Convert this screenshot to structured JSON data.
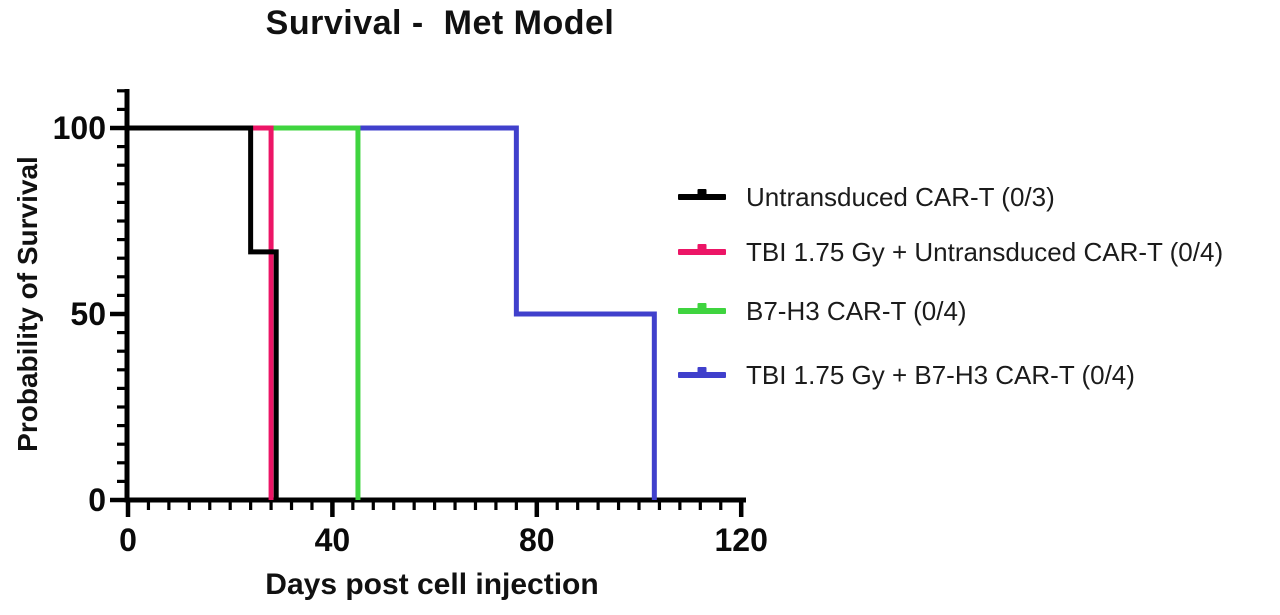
{
  "title": "Survival -  Met Model",
  "chart_data": {
    "type": "line",
    "subtype": "kaplan-meier-step-survival",
    "title": "Survival -  Met Model",
    "xlabel": "Days post cell injection",
    "ylabel": "Probability of Survival",
    "xlim": [
      0,
      120
    ],
    "ylim": [
      0,
      110
    ],
    "x_major_ticks": [
      0,
      40,
      80,
      120
    ],
    "x_minor_tick_step": 4,
    "y_major_ticks": [
      0,
      50,
      100
    ],
    "y_minor_tick_step": 5,
    "grid": false,
    "legend_position": "right",
    "axis_color": "#000000",
    "series": [
      {
        "name": "Untransduced CAR-T (0/3)",
        "color": "#000000",
        "points": [
          [
            0,
            100
          ],
          [
            24,
            100
          ],
          [
            24,
            66.7
          ],
          [
            29,
            66.7
          ],
          [
            29,
            0
          ]
        ]
      },
      {
        "name": "TBI 1.75 Gy + Untransduced CAR-T (0/4)",
        "color": "#EC1566",
        "points": [
          [
            0,
            100
          ],
          [
            28,
            100
          ],
          [
            28,
            0
          ]
        ]
      },
      {
        "name": "B7-H3 CAR-T (0/4)",
        "color": "#3FD43F",
        "points": [
          [
            0,
            100
          ],
          [
            45,
            100
          ],
          [
            45,
            0
          ]
        ]
      },
      {
        "name": "TBI 1.75 Gy + B7-H3 CAR-T (0/4)",
        "color": "#4040CC",
        "points": [
          [
            0,
            100
          ],
          [
            76,
            100
          ],
          [
            76,
            50
          ],
          [
            103,
            50
          ],
          [
            103,
            0
          ]
        ]
      }
    ]
  }
}
